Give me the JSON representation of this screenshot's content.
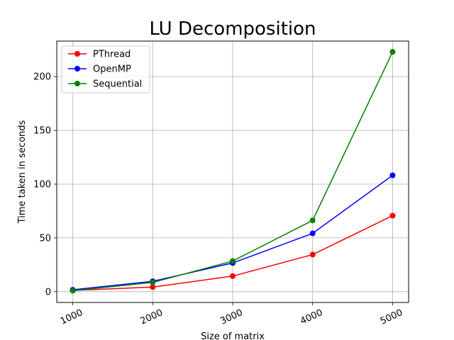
{
  "chart_data": {
    "type": "line",
    "title": "LU Decomposition",
    "xlabel": "Size of matrix",
    "ylabel": "Time taken in seconds",
    "x": [
      1000,
      2000,
      3000,
      4000,
      5000
    ],
    "x_tick_labels": [
      "1000",
      "2000",
      "3000",
      "4000",
      "5000"
    ],
    "y_ticks": [
      0,
      50,
      100,
      150,
      200
    ],
    "y_tick_labels": [
      "0",
      "50",
      "100",
      "150",
      "200"
    ],
    "xlim": [
      800,
      5200
    ],
    "ylim": [
      -10,
      233
    ],
    "grid": true,
    "legend_position": "upper-left",
    "series": [
      {
        "name": "PThread",
        "color": "#ff0000",
        "values": [
          1.2,
          4.3,
          14.5,
          34.5,
          70.7
        ]
      },
      {
        "name": "OpenMP",
        "color": "#0000ff",
        "values": [
          1.8,
          9.7,
          26.7,
          54.2,
          108.2
        ]
      },
      {
        "name": "Sequential",
        "color": "#008000",
        "values": [
          0.9,
          8.6,
          28.5,
          66.3,
          223.0
        ]
      }
    ]
  }
}
